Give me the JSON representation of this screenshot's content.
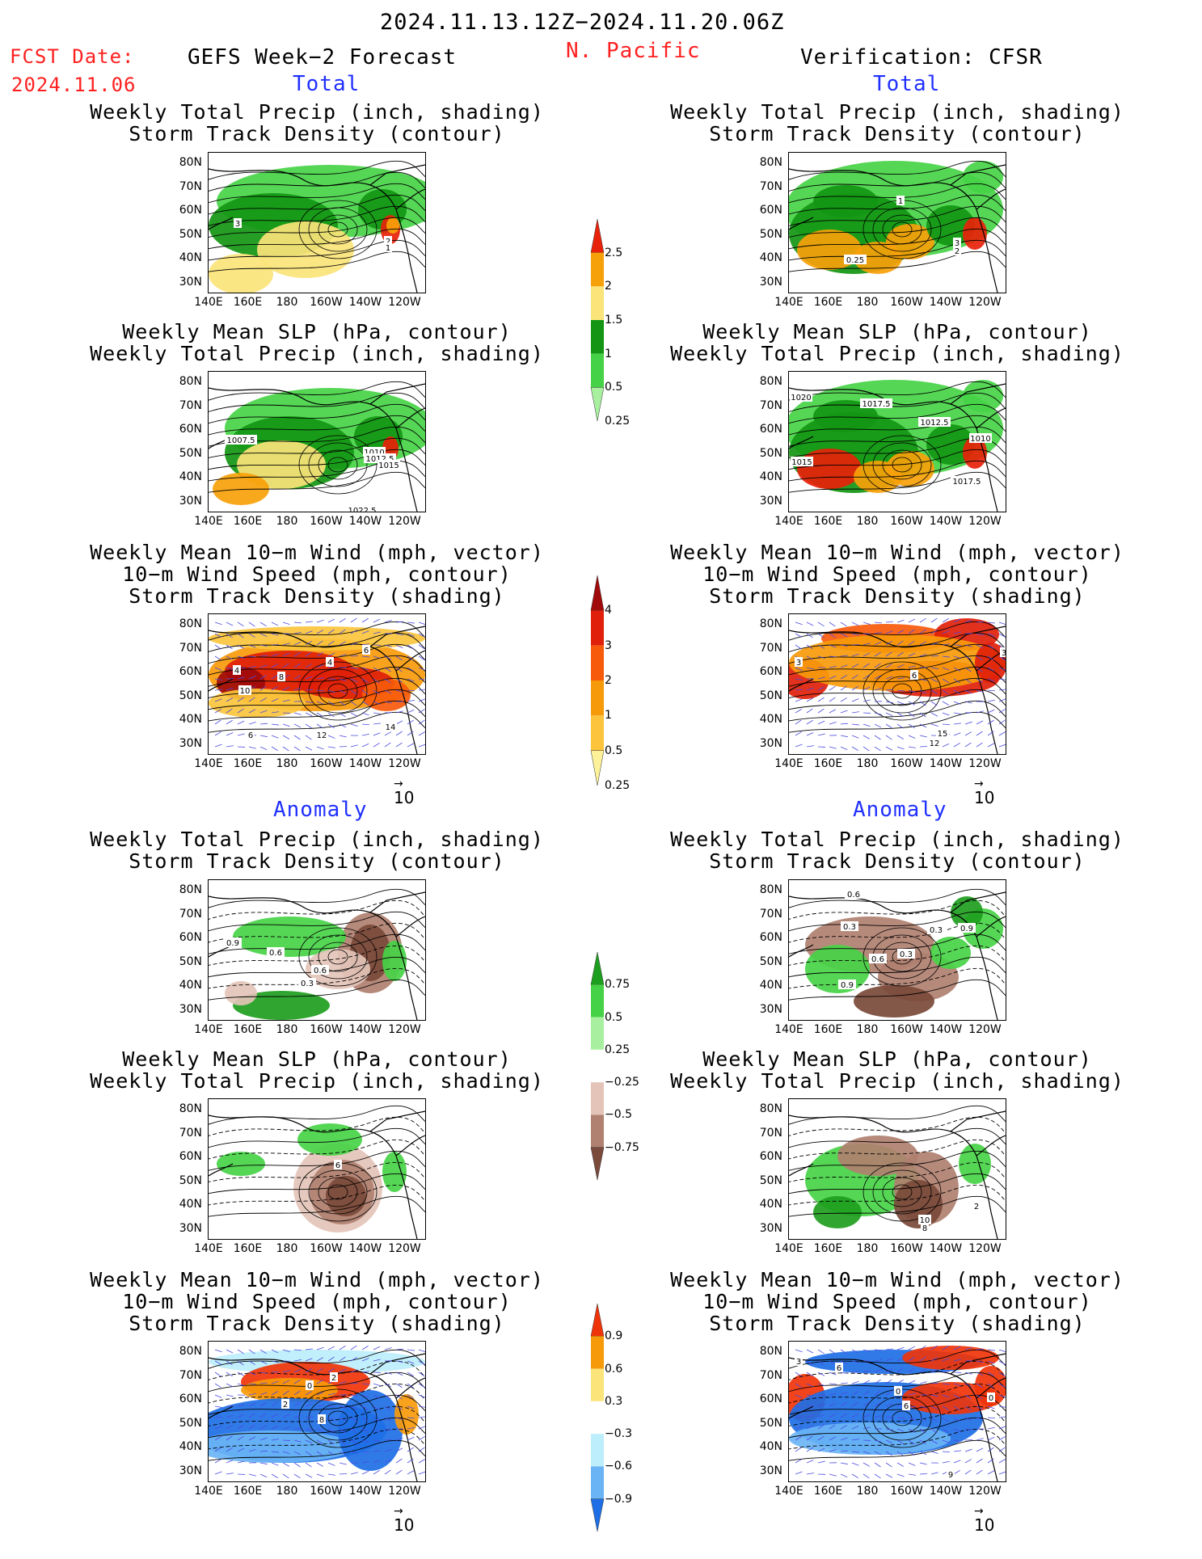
{
  "header": {
    "period": "2024.11.13.12Z−2024.11.20.06Z",
    "fcst_label": "FCST Date:",
    "fcst_date": "2024.11.06",
    "left_title": "GEFS Week−2 Forecast",
    "region": "N. Pacific",
    "right_title": "Verification: CFSR",
    "total_label": "Total",
    "anomaly_label": "Anomaly"
  },
  "panel_titles": {
    "precip_storm": [
      "Weekly Total Precip (inch, shading)",
      "Storm Track Density (contour)"
    ],
    "slp_precip": [
      "Weekly Mean SLP (hPa, contour)",
      "Weekly Total Precip (inch, shading)"
    ],
    "wind_storm": [
      "Weekly Mean 10−m Wind (mph, vector)",
      "10−m Wind Speed (mph, contour)",
      "Storm Track Density (shading)"
    ]
  },
  "axes": {
    "lat_ticks": [
      "80N",
      "70N",
      "60N",
      "50N",
      "40N",
      "30N"
    ],
    "lon_ticks": [
      "140E",
      "160E",
      "180",
      "160W",
      "140W",
      "120W"
    ],
    "vector_ref": "10"
  },
  "colorbars": {
    "precip_total": {
      "labels": [
        "2.5",
        "2",
        "1.5",
        "1",
        "0.5",
        "0.25"
      ],
      "colors": [
        "#e8220a",
        "#f7a10a",
        "#fbe47a",
        "#149614",
        "#46d246",
        "#a8f0a0"
      ]
    },
    "storm_total": {
      "labels": [
        "4",
        "3",
        "2",
        "1",
        "0.5",
        "0.25"
      ],
      "colors": [
        "#a00a0a",
        "#e0200a",
        "#f75a0a",
        "#f79a0a",
        "#fbc43c",
        "#fdf29a"
      ]
    },
    "precip_anom": {
      "labels": [
        "0.75",
        "0.5",
        "0.25",
        "−0.25",
        "−0.5",
        "−0.75"
      ],
      "colors": [
        "#1e9e1e",
        "#46d246",
        "#a8f0a0",
        "#ffffff",
        "#e4c4b8",
        "#b08070",
        "#7a4a3a"
      ]
    },
    "storm_anom": {
      "labels": [
        "0.9",
        "0.6",
        "0.3",
        "−0.3",
        "−0.6",
        "−0.9"
      ],
      "colors": [
        "#f0340a",
        "#f79a0a",
        "#fbe47a",
        "#ffffff",
        "#bdeefc",
        "#6ab4f5",
        "#1e6fe6"
      ]
    }
  },
  "contour_labels": {
    "r1c1": [
      "3",
      "2",
      "1"
    ],
    "r1c2": [
      "1",
      "0.25",
      "3",
      "2"
    ],
    "r2c1": [
      "1007.5",
      "1010",
      "1012.5",
      "1015",
      "1022.5"
    ],
    "r2c2": [
      "1020",
      "1017.5",
      "1012.5",
      "1010",
      "1015",
      "1017.5"
    ],
    "r3c1": [
      "4",
      "10",
      "8",
      "4",
      "6",
      "12",
      "14",
      "6"
    ],
    "r3c2": [
      "3",
      "6",
      "3",
      "15",
      "12"
    ],
    "r4c1": [
      "0.9",
      "0.6",
      "0.3",
      "0.6"
    ],
    "r4c2": [
      "0.6",
      "0.3",
      "0.3",
      "0.9",
      "0.6",
      "0.3",
      "0.9"
    ],
    "r5c1": [
      "6"
    ],
    "r5c2": [
      "10",
      "8",
      "2"
    ],
    "r6c1": [
      "0",
      "2",
      "2",
      "8"
    ],
    "r6c2": [
      "3",
      "6",
      "0",
      "6",
      "0",
      "3",
      "9"
    ]
  }
}
